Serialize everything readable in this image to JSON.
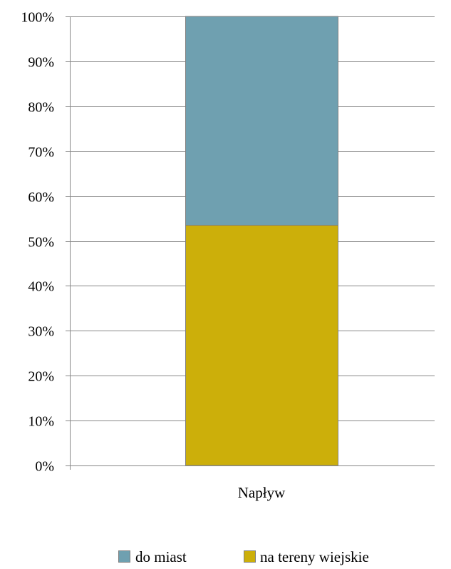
{
  "chart_data": {
    "type": "bar",
    "stacked": true,
    "normalized_percent": true,
    "categories": [
      "Napływ"
    ],
    "series": [
      {
        "name": "na tereny wiejskie",
        "values": [
          53.5
        ],
        "color": "#CCAF0A"
      },
      {
        "name": "do miast",
        "values": [
          46.5
        ],
        "color": "#6FA0B0"
      }
    ],
    "ylim": [
      0,
      100
    ],
    "y_ticks": [
      0,
      10,
      20,
      30,
      40,
      50,
      60,
      70,
      80,
      90,
      100
    ],
    "y_tick_labels": [
      "0%",
      "10%",
      "20%",
      "30%",
      "40%",
      "50%",
      "60%",
      "70%",
      "80%",
      "90%",
      "100%"
    ],
    "grid": true,
    "legend_position": "bottom",
    "legend_order": [
      "do miast",
      "na tereny wiejskie"
    ]
  }
}
